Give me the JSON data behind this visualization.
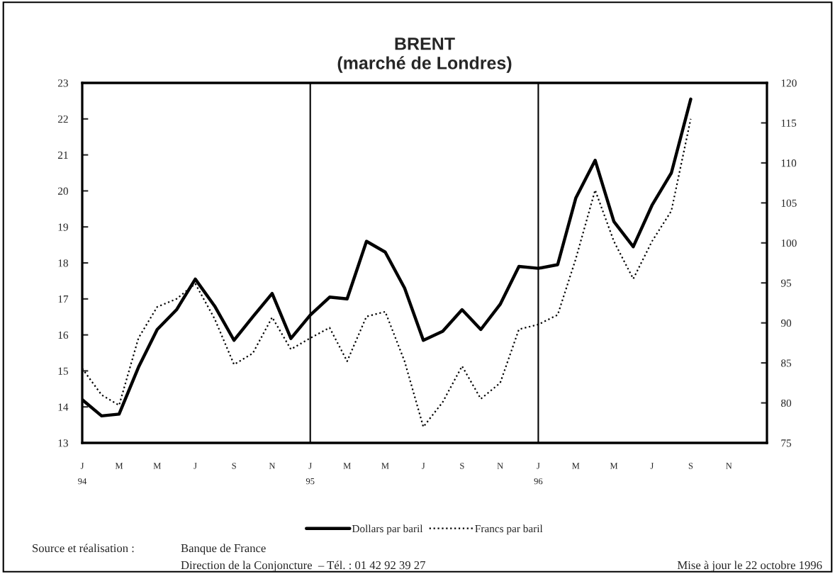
{
  "chart_data": {
    "type": "line",
    "title": "BRENT\n(marché de Londres)",
    "x": [
      "1994-01",
      "1994-02",
      "1994-03",
      "1994-04",
      "1994-05",
      "1994-06",
      "1994-07",
      "1994-08",
      "1994-09",
      "1994-10",
      "1994-11",
      "1994-12",
      "1995-01",
      "1995-02",
      "1995-03",
      "1995-04",
      "1995-05",
      "1995-06",
      "1995-07",
      "1995-08",
      "1995-09",
      "1995-10",
      "1995-11",
      "1995-12",
      "1996-01",
      "1996-02",
      "1996-03",
      "1996-04",
      "1996-05",
      "1996-06",
      "1996-07",
      "1996-08",
      "1996-09"
    ],
    "series": [
      {
        "name": "Dollars par baril",
        "color": "#000000",
        "line_style": "solid",
        "values": [
          14.2,
          13.75,
          13.8,
          15.1,
          16.15,
          16.7,
          17.55,
          16.8,
          15.85,
          16.5,
          17.15,
          15.9,
          16.55,
          17.05,
          17.0,
          18.6,
          18.3,
          17.3,
          15.85,
          16.1,
          16.7,
          16.15,
          16.85,
          17.9,
          17.85,
          17.95,
          19.8,
          20.85,
          19.15,
          18.45,
          19.6,
          20.5,
          22.55
        ]
      },
      {
        "name": "Francs par baril",
        "color": "#000000",
        "line_style": "dotted",
        "axis": "y2",
        "values": [
          84.3,
          81,
          79.7,
          88.1,
          92,
          93,
          94.9,
          90.5,
          84.8,
          86.2,
          90.7,
          86.7,
          88.1,
          89.4,
          85.2,
          90.8,
          91.4,
          85.2,
          77,
          80.1,
          84.6,
          80.5,
          82.5,
          89.2,
          89.8,
          91,
          98,
          106.6,
          100.2,
          95.5,
          100.2,
          104,
          115.5
        ]
      }
    ],
    "xlim": [
      "1994-01",
      "1997-01"
    ],
    "xticks": [
      {
        "value": "1994-01",
        "label": "J\n94"
      },
      {
        "value": "1994-03",
        "label": "M"
      },
      {
        "value": "1994-05",
        "label": "M"
      },
      {
        "value": "1994-07",
        "label": "J"
      },
      {
        "value": "1994-09",
        "label": "S"
      },
      {
        "value": "1994-11",
        "label": "N"
      },
      {
        "value": "1995-01",
        "label": "J\n95"
      },
      {
        "value": "1995-03",
        "label": "M"
      },
      {
        "value": "1995-05",
        "label": "M"
      },
      {
        "value": "1995-07",
        "label": "J"
      },
      {
        "value": "1995-09",
        "label": "S"
      },
      {
        "value": "1995-11",
        "label": "N"
      },
      {
        "value": "1996-01",
        "label": "J\n96"
      },
      {
        "value": "1996-03",
        "label": "M"
      },
      {
        "value": "1996-05",
        "label": "M"
      },
      {
        "value": "1996-07",
        "label": "J"
      },
      {
        "value": "1996-09",
        "label": "S"
      },
      {
        "value": "1996-11",
        "label": "N"
      }
    ],
    "ylim": [
      13,
      23
    ],
    "yticks": [
      13,
      14,
      15,
      16,
      17,
      18,
      19,
      20,
      21,
      22,
      23
    ],
    "y2lim": [
      75,
      120
    ],
    "y2ticks": [
      75,
      80,
      85,
      90,
      95,
      100,
      105,
      110,
      115,
      120
    ],
    "ref_lines": [
      {
        "axis": "x",
        "value": "1995-01",
        "color": "#000000"
      },
      {
        "axis": "x",
        "value": "1996-01",
        "color": "#000000"
      }
    ],
    "marker": "none",
    "grid": false,
    "legend": "bottom",
    "annotations": [
      "Source et réalisation :",
      "Banque de France",
      "Direction de la Conjoncture  – Tél. : 01 42 92 39 27",
      "Mise à jour le 22 octobre 1996"
    ]
  }
}
